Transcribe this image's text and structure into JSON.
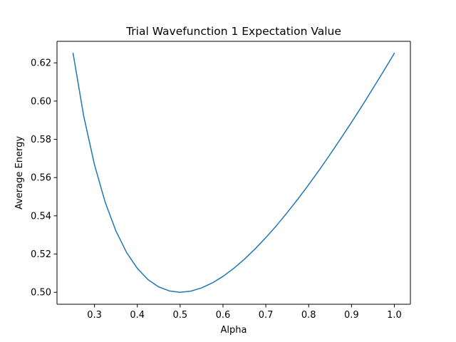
{
  "chart_data": {
    "type": "line",
    "title": "Trial Wavefunction 1 Expectation Value",
    "xlabel": "Alpha",
    "ylabel": "Average Energy",
    "xlim": [
      0.2125,
      1.0375
    ],
    "ylim": [
      0.49375,
      0.63125
    ],
    "grid": false,
    "legend": "none",
    "xticks": [
      0.3,
      0.4,
      0.5,
      0.6,
      0.7,
      0.8,
      0.9,
      1.0
    ],
    "xtick_labels": [
      "0.3",
      "0.4",
      "0.5",
      "0.6",
      "0.7",
      "0.8",
      "0.9",
      "1.0"
    ],
    "yticks": [
      0.5,
      0.52,
      0.54,
      0.56,
      0.58,
      0.6,
      0.62
    ],
    "ytick_labels": [
      "0.50",
      "0.52",
      "0.54",
      "0.56",
      "0.58",
      "0.60",
      "0.62"
    ],
    "series": [
      {
        "color": "#1f77b4",
        "x": [
          0.25,
          0.275,
          0.3,
          0.325,
          0.35,
          0.375,
          0.4,
          0.425,
          0.45,
          0.475,
          0.5,
          0.525,
          0.55,
          0.575,
          0.6,
          0.625,
          0.65,
          0.675,
          0.7,
          0.725,
          0.75,
          0.775,
          0.8,
          0.825,
          0.85,
          0.875,
          0.9,
          0.925,
          0.95,
          0.975,
          1.0
        ],
        "y": [
          0.625,
          0.592,
          0.5667,
          0.5471,
          0.5321,
          0.5208,
          0.5125,
          0.5066,
          0.5028,
          0.5007,
          0.5,
          0.5006,
          0.5023,
          0.5049,
          0.5083,
          0.5125,
          0.5173,
          0.5227,
          0.5286,
          0.5349,
          0.5417,
          0.5488,
          0.5563,
          0.564,
          0.5721,
          0.5804,
          0.5889,
          0.5976,
          0.6066,
          0.6157,
          0.625
        ]
      }
    ]
  }
}
